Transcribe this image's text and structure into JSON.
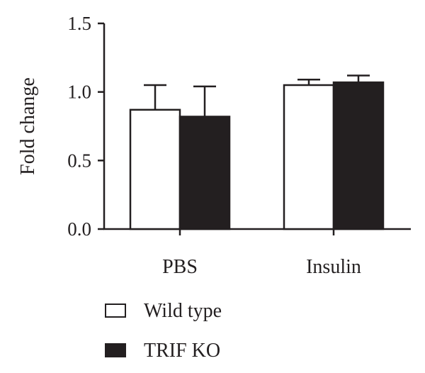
{
  "chart_data": {
    "type": "bar",
    "title": "",
    "xlabel": "",
    "ylabel": "Fold change",
    "ylim": [
      0,
      1.5
    ],
    "yticks": [
      "0.0",
      "0.5",
      "1.0",
      "1.5"
    ],
    "categories": [
      "PBS",
      "Insulin"
    ],
    "series": [
      {
        "name": "Wild type",
        "values": [
          0.87,
          1.05
        ],
        "errors": [
          0.18,
          0.04
        ],
        "fill": "#ffffff"
      },
      {
        "name": "TRIF KO",
        "values": [
          0.82,
          1.07
        ],
        "errors": [
          0.22,
          0.05
        ],
        "fill": "#231f20"
      }
    ],
    "grid": false,
    "legend": "bottom-left"
  }
}
